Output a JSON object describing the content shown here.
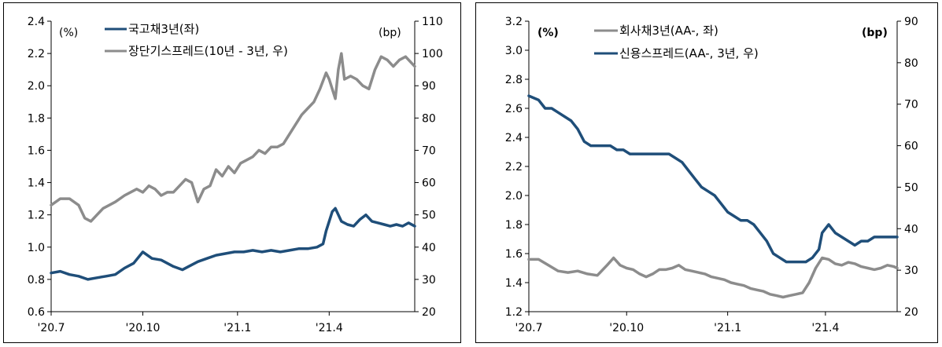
{
  "chart_data": [
    {
      "type": "line",
      "left_unit": "(%)",
      "right_unit": "(bp)",
      "x_ticks": [
        "'20.7",
        "'20.10",
        "'21.1",
        "'21.4"
      ],
      "y_left": {
        "min": 0.6,
        "max": 2.4,
        "ticks": [
          "0.6",
          "0.8",
          "1.0",
          "1.2",
          "1.4",
          "1.6",
          "1.8",
          "2.0",
          "2.2",
          "2.4"
        ]
      },
      "y_right": {
        "min": 20,
        "max": 110,
        "ticks": [
          "20",
          "30",
          "40",
          "50",
          "60",
          "70",
          "80",
          "90",
          "100",
          "110"
        ]
      },
      "grid": false,
      "legend_position": "top-left",
      "series": [
        {
          "name": "국고채3년(좌)",
          "axis": "left",
          "color": "#1f4e79",
          "points": [
            [
              0,
              0.84
            ],
            [
              3,
              0.85
            ],
            [
              6,
              0.83
            ],
            [
              9,
              0.82
            ],
            [
              12,
              0.8
            ],
            [
              15,
              0.81
            ],
            [
              18,
              0.82
            ],
            [
              21,
              0.83
            ],
            [
              24,
              0.87
            ],
            [
              27,
              0.9
            ],
            [
              30,
              0.97
            ],
            [
              33,
              0.93
            ],
            [
              36,
              0.92
            ],
            [
              40,
              0.88
            ],
            [
              43,
              0.86
            ],
            [
              45,
              0.88
            ],
            [
              48,
              0.91
            ],
            [
              51,
              0.93
            ],
            [
              54,
              0.95
            ],
            [
              57,
              0.96
            ],
            [
              60,
              0.97
            ],
            [
              63,
              0.97
            ],
            [
              66,
              0.98
            ],
            [
              69,
              0.97
            ],
            [
              72,
              0.98
            ],
            [
              75,
              0.97
            ],
            [
              78,
              0.98
            ],
            [
              81,
              0.99
            ],
            [
              84,
              0.99
            ],
            [
              87,
              1.0
            ],
            [
              89,
              1.02
            ],
            [
              90,
              1.1
            ],
            [
              92,
              1.22
            ],
            [
              93,
              1.24
            ],
            [
              95,
              1.16
            ],
            [
              97,
              1.14
            ],
            [
              99,
              1.13
            ],
            [
              101,
              1.17
            ],
            [
              103,
              1.2
            ],
            [
              105,
              1.16
            ],
            [
              107,
              1.15
            ],
            [
              109,
              1.14
            ],
            [
              111,
              1.13
            ],
            [
              113,
              1.14
            ],
            [
              115,
              1.13
            ],
            [
              117,
              1.15
            ],
            [
              119,
              1.13
            ]
          ]
        },
        {
          "name": "장단기스프레드(10년 - 3년, 우)",
          "axis": "right",
          "color": "#8c8c8c",
          "points": [
            [
              0,
              53
            ],
            [
              3,
              55
            ],
            [
              6,
              55
            ],
            [
              9,
              53
            ],
            [
              11,
              49
            ],
            [
              13,
              48
            ],
            [
              15,
              50
            ],
            [
              17,
              52
            ],
            [
              19,
              53
            ],
            [
              21,
              54
            ],
            [
              24,
              56
            ],
            [
              26,
              57
            ],
            [
              28,
              58
            ],
            [
              30,
              57
            ],
            [
              32,
              59
            ],
            [
              34,
              58
            ],
            [
              36,
              56
            ],
            [
              38,
              57
            ],
            [
              40,
              57
            ],
            [
              42,
              59
            ],
            [
              44,
              61
            ],
            [
              46,
              60
            ],
            [
              48,
              54
            ],
            [
              50,
              58
            ],
            [
              52,
              59
            ],
            [
              54,
              64
            ],
            [
              56,
              62
            ],
            [
              58,
              65
            ],
            [
              60,
              63
            ],
            [
              62,
              66
            ],
            [
              64,
              67
            ],
            [
              66,
              68
            ],
            [
              68,
              70
            ],
            [
              70,
              69
            ],
            [
              72,
              71
            ],
            [
              74,
              71
            ],
            [
              76,
              72
            ],
            [
              78,
              75
            ],
            [
              80,
              78
            ],
            [
              82,
              81
            ],
            [
              84,
              83
            ],
            [
              86,
              85
            ],
            [
              88,
              89
            ],
            [
              90,
              94
            ],
            [
              91,
              92
            ],
            [
              93,
              86
            ],
            [
              94,
              95
            ],
            [
              95,
              100
            ],
            [
              96,
              92
            ],
            [
              98,
              93
            ],
            [
              100,
              92
            ],
            [
              102,
              90
            ],
            [
              104,
              89
            ],
            [
              106,
              95
            ],
            [
              108,
              99
            ],
            [
              110,
              98
            ],
            [
              112,
              96
            ],
            [
              114,
              98
            ],
            [
              116,
              99
            ],
            [
              118,
              97
            ],
            [
              119,
              96
            ]
          ]
        }
      ]
    },
    {
      "type": "line",
      "left_unit": "(%)",
      "right_unit": "(bp)",
      "x_ticks": [
        "'20.7",
        "'20.10",
        "'21.1",
        "'21.4"
      ],
      "y_left": {
        "min": 1.2,
        "max": 3.2,
        "ticks": [
          "1.2",
          "1.4",
          "1.6",
          "1.8",
          "2.0",
          "2.2",
          "2.4",
          "2.6",
          "2.8",
          "3.0",
          "3.2"
        ]
      },
      "y_right": {
        "min": 20,
        "max": 90,
        "ticks": [
          "20",
          "30",
          "40",
          "50",
          "60",
          "70",
          "80",
          "90"
        ]
      },
      "grid": false,
      "legend_position": "top-center",
      "series": [
        {
          "name": "회사채3년(AA-, 좌)",
          "axis": "left",
          "color": "#8c8c8c",
          "points": [
            [
              0,
              1.56
            ],
            [
              3,
              1.56
            ],
            [
              6,
              1.52
            ],
            [
              9,
              1.48
            ],
            [
              12,
              1.47
            ],
            [
              15,
              1.48
            ],
            [
              18,
              1.46
            ],
            [
              21,
              1.45
            ],
            [
              24,
              1.52
            ],
            [
              26,
              1.57
            ],
            [
              28,
              1.52
            ],
            [
              30,
              1.5
            ],
            [
              32,
              1.49
            ],
            [
              34,
              1.46
            ],
            [
              36,
              1.44
            ],
            [
              38,
              1.46
            ],
            [
              40,
              1.49
            ],
            [
              42,
              1.49
            ],
            [
              44,
              1.5
            ],
            [
              46,
              1.52
            ],
            [
              48,
              1.49
            ],
            [
              50,
              1.48
            ],
            [
              52,
              1.47
            ],
            [
              54,
              1.46
            ],
            [
              56,
              1.44
            ],
            [
              58,
              1.43
            ],
            [
              60,
              1.42
            ],
            [
              62,
              1.4
            ],
            [
              64,
              1.39
            ],
            [
              66,
              1.38
            ],
            [
              68,
              1.36
            ],
            [
              70,
              1.35
            ],
            [
              72,
              1.34
            ],
            [
              74,
              1.32
            ],
            [
              76,
              1.31
            ],
            [
              78,
              1.3
            ],
            [
              80,
              1.31
            ],
            [
              82,
              1.32
            ],
            [
              84,
              1.33
            ],
            [
              86,
              1.4
            ],
            [
              88,
              1.5
            ],
            [
              90,
              1.57
            ],
            [
              92,
              1.56
            ],
            [
              94,
              1.53
            ],
            [
              96,
              1.52
            ],
            [
              98,
              1.54
            ],
            [
              100,
              1.53
            ],
            [
              102,
              1.51
            ],
            [
              104,
              1.5
            ],
            [
              106,
              1.49
            ],
            [
              108,
              1.5
            ],
            [
              110,
              1.52
            ],
            [
              112,
              1.51
            ],
            [
              113,
              1.5
            ]
          ]
        },
        {
          "name": "신용스프레드(AA-, 3년, 우)",
          "axis": "right",
          "color": "#1f4e79",
          "points": [
            [
              0,
              72
            ],
            [
              3,
              71
            ],
            [
              5,
              69
            ],
            [
              7,
              69
            ],
            [
              9,
              68
            ],
            [
              11,
              67
            ],
            [
              13,
              66
            ],
            [
              15,
              64
            ],
            [
              17,
              61
            ],
            [
              19,
              60
            ],
            [
              21,
              60
            ],
            [
              23,
              60
            ],
            [
              25,
              60
            ],
            [
              27,
              59
            ],
            [
              29,
              59
            ],
            [
              31,
              58
            ],
            [
              33,
              58
            ],
            [
              35,
              58
            ],
            [
              37,
              58
            ],
            [
              39,
              58
            ],
            [
              41,
              58
            ],
            [
              43,
              58
            ],
            [
              45,
              57
            ],
            [
              47,
              56
            ],
            [
              49,
              54
            ],
            [
              51,
              52
            ],
            [
              53,
              50
            ],
            [
              55,
              49
            ],
            [
              57,
              48
            ],
            [
              59,
              46
            ],
            [
              61,
              44
            ],
            [
              63,
              43
            ],
            [
              65,
              42
            ],
            [
              67,
              42
            ],
            [
              69,
              41
            ],
            [
              71,
              39
            ],
            [
              73,
              37
            ],
            [
              75,
              34
            ],
            [
              77,
              33
            ],
            [
              79,
              32
            ],
            [
              81,
              32
            ],
            [
              83,
              32
            ],
            [
              85,
              32
            ],
            [
              87,
              33
            ],
            [
              89,
              35
            ],
            [
              90,
              39
            ],
            [
              92,
              41
            ],
            [
              94,
              39
            ],
            [
              96,
              38
            ],
            [
              98,
              37
            ],
            [
              100,
              36
            ],
            [
              102,
              37
            ],
            [
              104,
              37
            ],
            [
              106,
              38
            ],
            [
              108,
              38
            ],
            [
              110,
              38
            ],
            [
              112,
              38
            ],
            [
              113,
              38
            ]
          ]
        }
      ]
    }
  ]
}
